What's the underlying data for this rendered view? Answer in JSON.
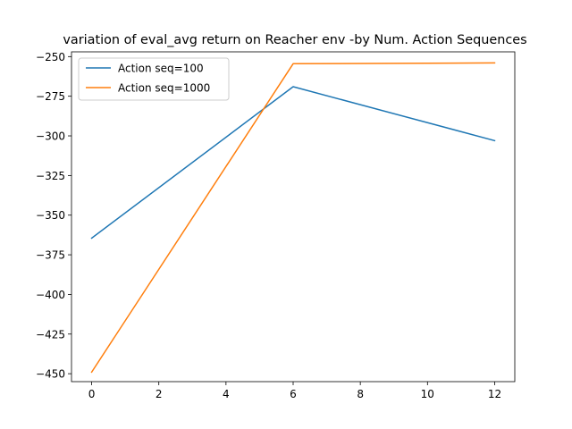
{
  "chart_data": {
    "type": "line",
    "title": "variation of eval_avg return on Reacher env  -by Num. Action Sequences",
    "xlabel": "",
    "ylabel": "",
    "xlim": [
      -0.6,
      12.6
    ],
    "ylim": [
      -455,
      -247
    ],
    "xticks": [
      0,
      2,
      4,
      6,
      8,
      10,
      12
    ],
    "yticks": [
      -450,
      -425,
      -400,
      -375,
      -350,
      -325,
      -300,
      -275,
      -250
    ],
    "grid": false,
    "legend": {
      "position": "top-left"
    },
    "series": [
      {
        "name": "Action seq=100",
        "color": "#1f77b4",
        "x": [
          0,
          6,
          12
        ],
        "y": [
          -364.5,
          -269.0,
          -303.0
        ]
      },
      {
        "name": "Action seq=1000",
        "color": "#ff7f0e",
        "x": [
          0,
          6,
          12
        ],
        "y": [
          -449.0,
          -254.5,
          -254.0
        ]
      }
    ]
  }
}
